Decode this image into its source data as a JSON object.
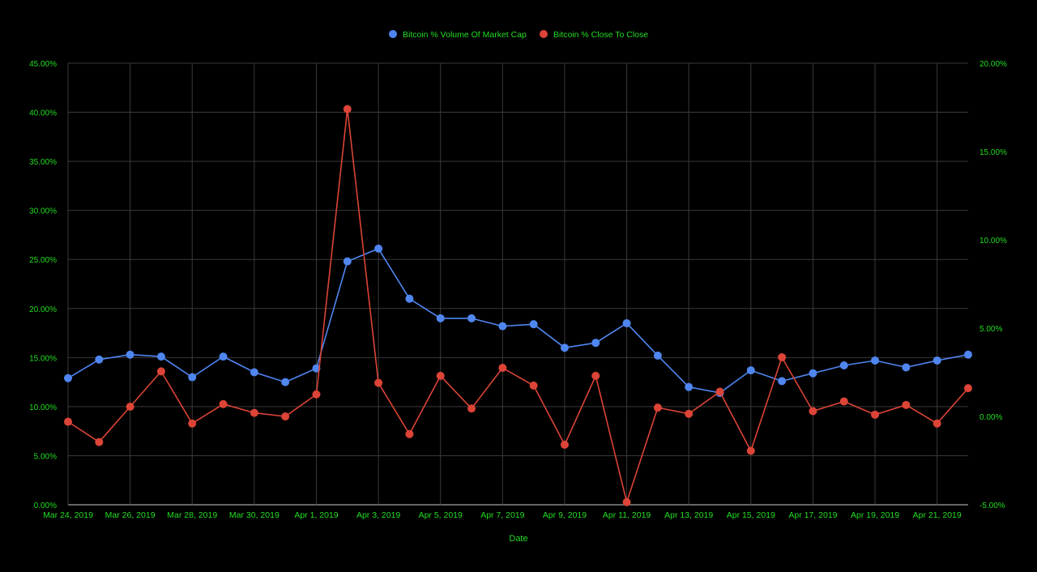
{
  "chart_data": {
    "type": "line",
    "xlabel": "Date",
    "legend_position": "top",
    "grid": true,
    "colors": {
      "background": "#000000",
      "grid": "#3a3a3a",
      "text": "#22dd22"
    },
    "x_tick_labels": [
      "Mar 24, 2019",
      "Mar 26, 2019",
      "Mar 28, 2019",
      "Mar 30, 2019",
      "Apr 1, 2019",
      "Apr 3, 2019",
      "Apr 5, 2019",
      "Apr 7, 2019",
      "Apr 9, 2019",
      "Apr 11, 2019",
      "Apr 13, 2019",
      "Apr 15, 2019",
      "Apr 17, 2019",
      "Apr 19, 2019",
      "Apr 21, 2019"
    ],
    "dates": [
      "2019-03-24",
      "2019-03-25",
      "2019-03-26",
      "2019-03-27",
      "2019-03-28",
      "2019-03-29",
      "2019-03-30",
      "2019-03-31",
      "2019-04-01",
      "2019-04-02",
      "2019-04-03",
      "2019-04-04",
      "2019-04-05",
      "2019-04-06",
      "2019-04-07",
      "2019-04-08",
      "2019-04-09",
      "2019-04-10",
      "2019-04-11",
      "2019-04-12",
      "2019-04-13",
      "2019-04-14",
      "2019-04-15",
      "2019-04-16",
      "2019-04-17",
      "2019-04-18",
      "2019-04-19",
      "2019-04-20",
      "2019-04-21",
      "2019-04-22"
    ],
    "y_left": {
      "ylim": [
        0,
        45
      ],
      "ticks": [
        0,
        5,
        10,
        15,
        20,
        25,
        30,
        35,
        40,
        45
      ],
      "tick_labels": [
        "0.00%",
        "5.00%",
        "10.00%",
        "15.00%",
        "20.00%",
        "25.00%",
        "30.00%",
        "35.00%",
        "40.00%",
        "45.00%"
      ]
    },
    "y_right": {
      "ylim": [
        -5,
        20
      ],
      "ticks": [
        -5,
        0,
        5,
        10,
        15,
        20
      ],
      "tick_labels": [
        "-5.00%",
        "0.00%",
        "5.00%",
        "10.00%",
        "15.00%",
        "20.00%"
      ]
    },
    "series": [
      {
        "name": "Bitcoin % Volume Of Market Cap",
        "axis": "left",
        "color": "#4f86f0",
        "values": [
          12.9,
          14.8,
          15.3,
          15.1,
          13.0,
          15.1,
          13.5,
          12.5,
          13.9,
          24.8,
          26.1,
          21.0,
          19.0,
          19.0,
          18.2,
          18.4,
          16.0,
          16.5,
          18.5,
          15.2,
          12.0,
          11.4,
          13.7,
          12.6,
          13.4,
          14.2,
          14.7,
          14.0,
          14.7,
          15.3
        ]
      },
      {
        "name": "Bitcoin % Close To Close",
        "axis": "right",
        "color": "#dc4437",
        "values": [
          -0.3,
          -1.45,
          0.55,
          2.55,
          -0.4,
          0.7,
          0.2,
          0.0,
          1.25,
          17.4,
          1.9,
          -1.0,
          2.3,
          0.45,
          2.75,
          1.75,
          -1.6,
          2.3,
          -4.85,
          0.5,
          0.15,
          1.4,
          -1.95,
          3.35,
          0.3,
          0.85,
          0.1,
          0.65,
          -0.4,
          1.6
        ]
      }
    ]
  }
}
